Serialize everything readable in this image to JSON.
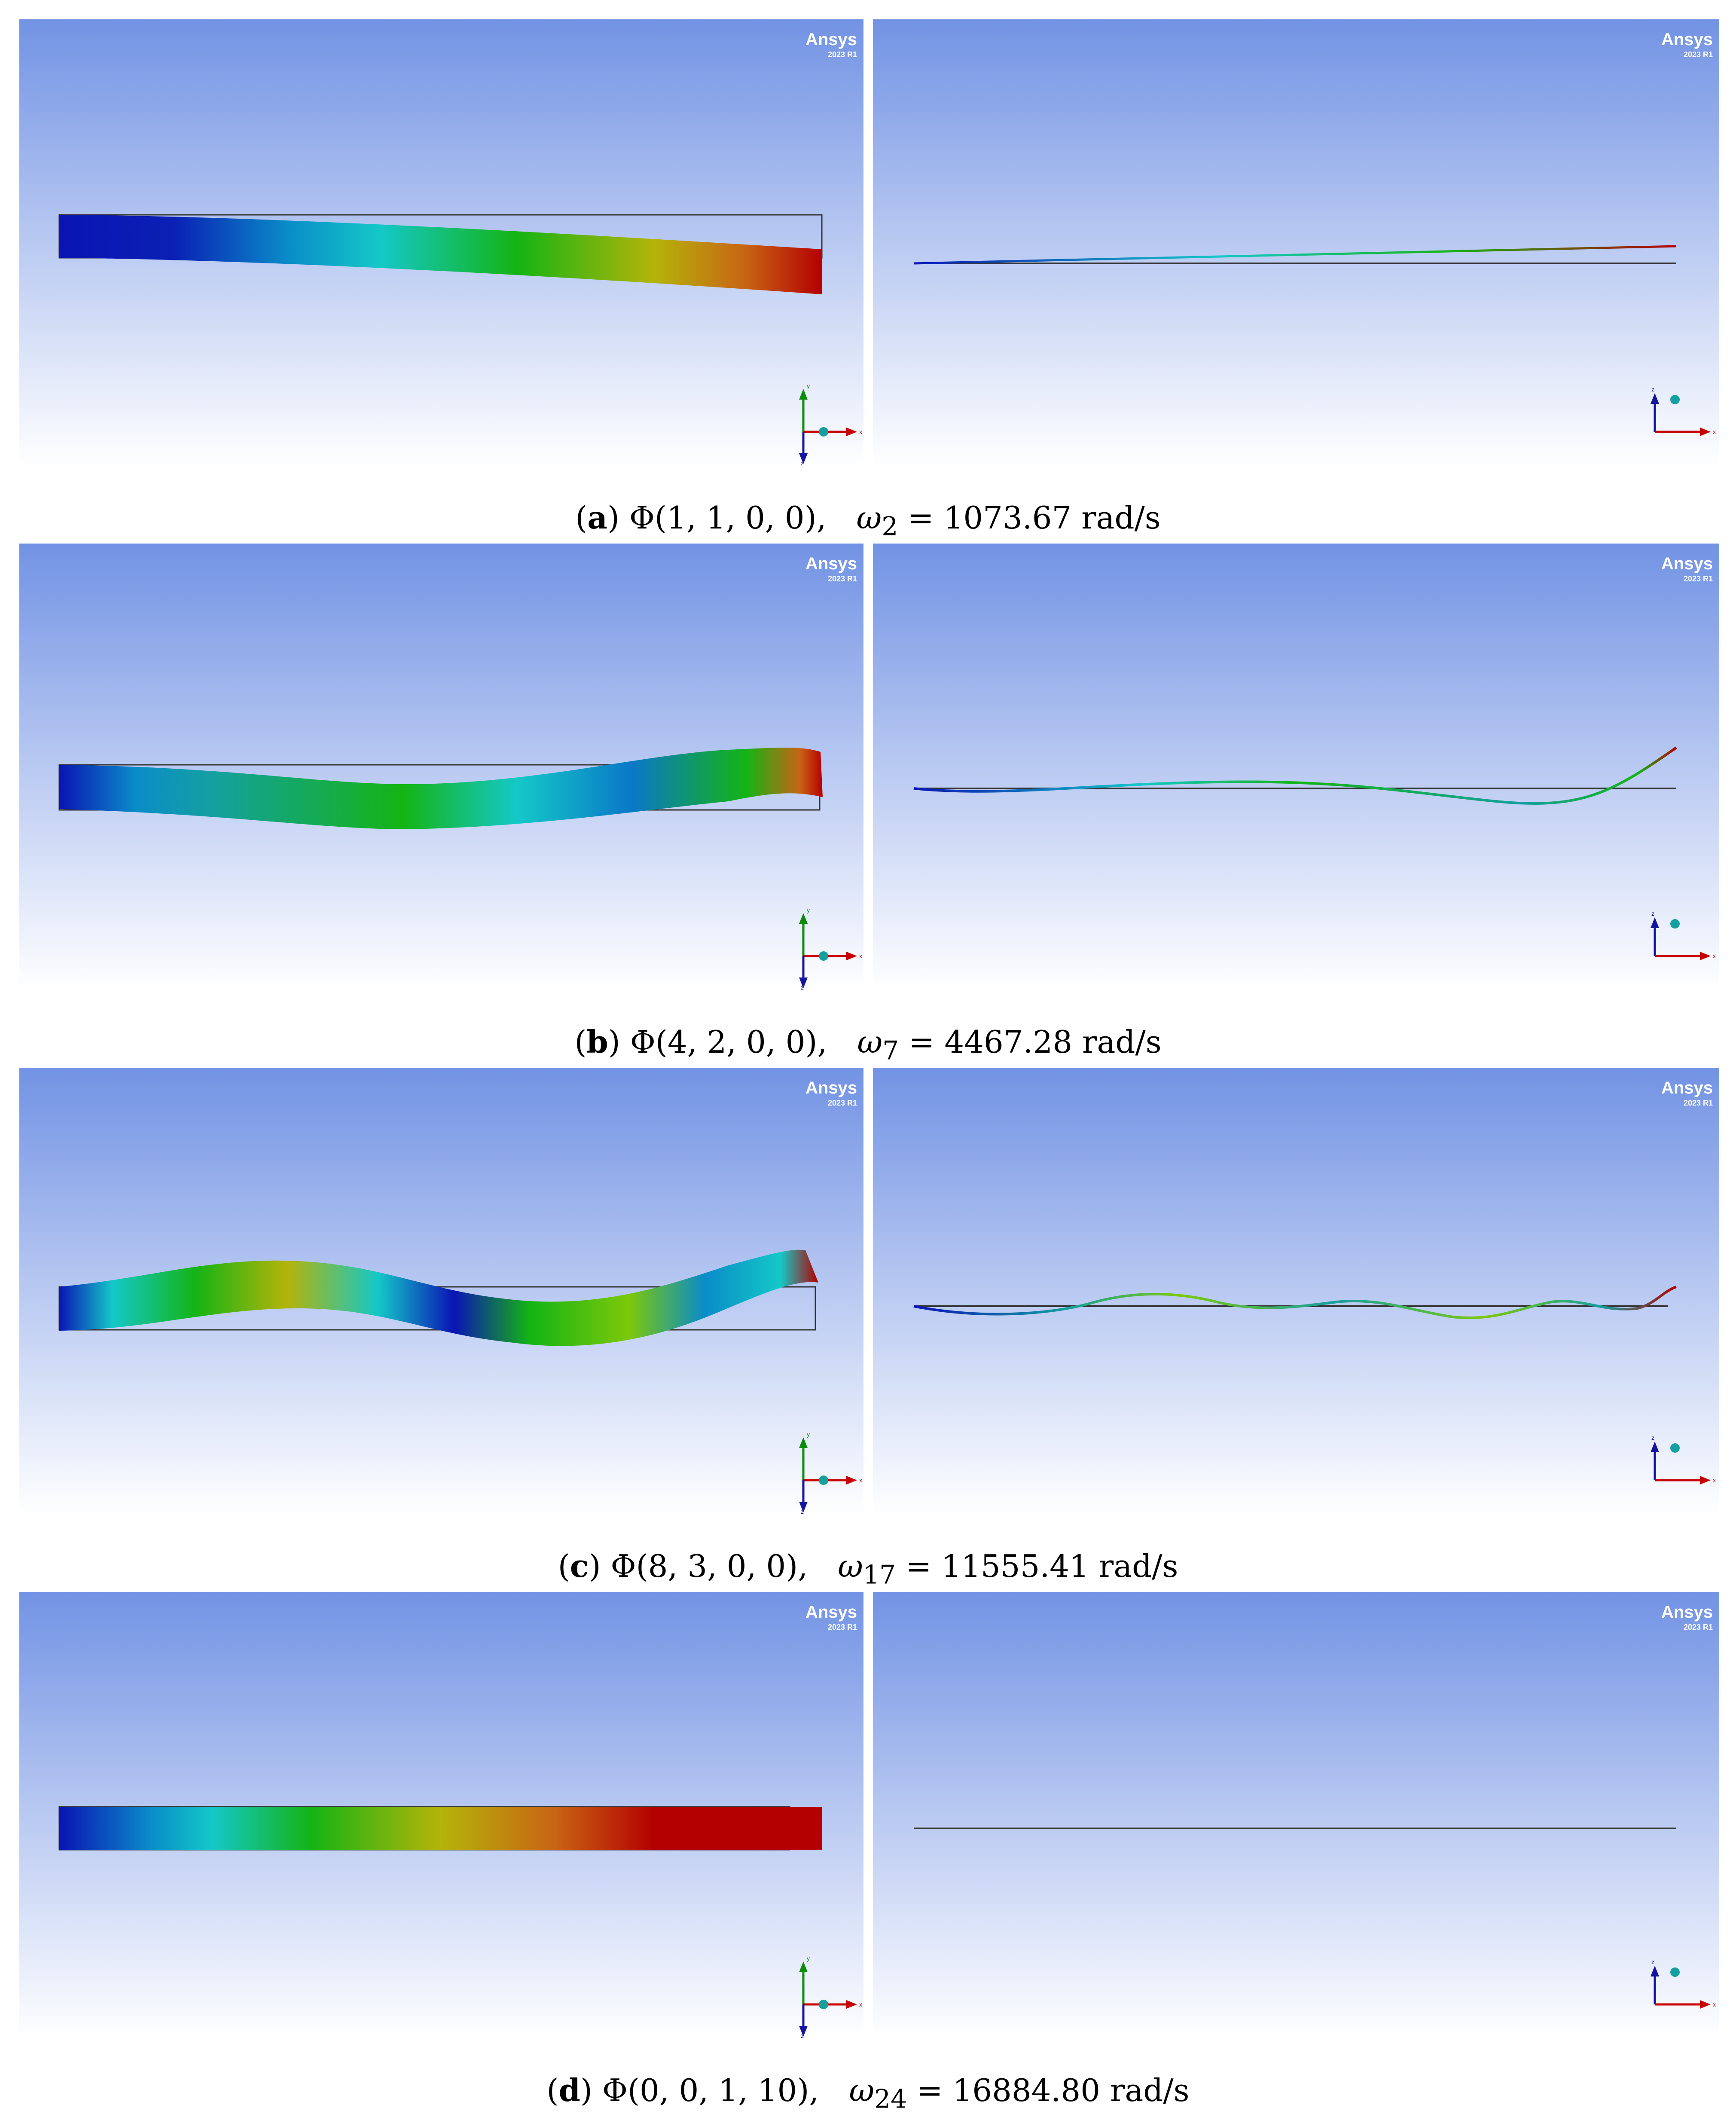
{
  "watermark": {
    "brand": "Ansys",
    "version": "2023 R1"
  },
  "axis_labels": {
    "x": "x",
    "y": "y",
    "z": "z"
  },
  "colors": {
    "bg_top": "#7293e4",
    "bg_bottom": "#ffffff",
    "contour": [
      "#0a14b4",
      "#0a78c8",
      "#14c8c8",
      "#14b414",
      "#b4b40a",
      "#c86414",
      "#b40000"
    ]
  },
  "rows": [
    {
      "label": "a",
      "phi_args": "(1, 1, 0, 0)",
      "omega_sub": "2",
      "omega_value": "1073.67",
      "unit": "rad/s"
    },
    {
      "label": "b",
      "phi_args": "(4, 2, 0, 0)",
      "omega_sub": "7",
      "omega_value": "4467.28",
      "unit": "rad/s"
    },
    {
      "label": "c",
      "phi_args": "(8, 3, 0, 0)",
      "omega_sub": "17",
      "omega_value": "11555.41",
      "unit": "rad/s"
    },
    {
      "label": "d",
      "phi_args": "(0, 0, 1, 10)",
      "omega_sub": "24",
      "omega_value": "16884.80",
      "unit": "rad/s"
    }
  ]
}
